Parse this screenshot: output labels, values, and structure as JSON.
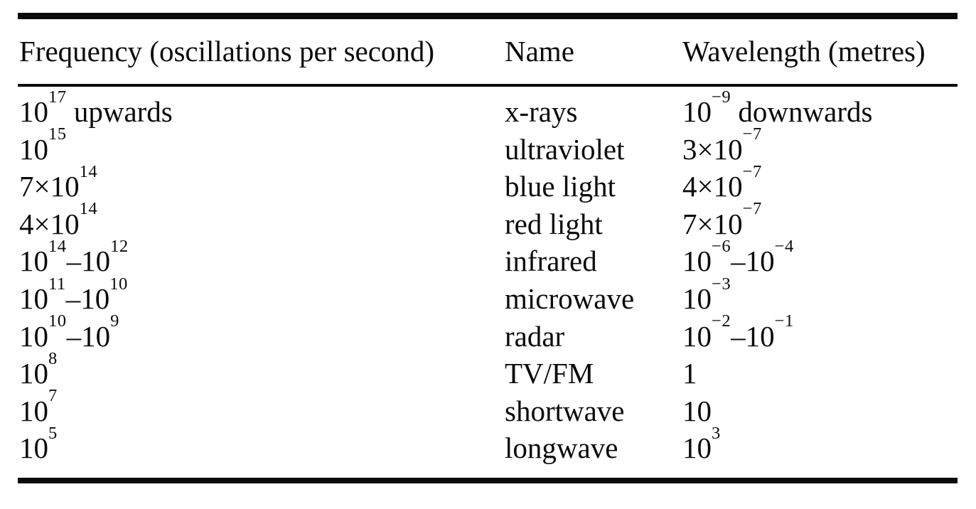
{
  "colors": {
    "text": "#0b0b0b",
    "background": "#ffffff",
    "rule": "#0b0b0b"
  },
  "table": {
    "columns": [
      {
        "key": "frequency",
        "label": "Frequency (oscillations per second)"
      },
      {
        "key": "name",
        "label": "Name"
      },
      {
        "key": "wavelength",
        "label": "Wavelength (metres)"
      }
    ],
    "rows": [
      {
        "frequency": "10^{17} upwards",
        "name": "x-rays",
        "wavelength": "10^{−9} downwards"
      },
      {
        "frequency": "10^{15}",
        "name": "ultraviolet",
        "wavelength": "3×10^{−7}"
      },
      {
        "frequency": "7×10^{14}",
        "name": "blue light",
        "wavelength": "4×10^{−7}"
      },
      {
        "frequency": "4×10^{14}",
        "name": "red light",
        "wavelength": "7×10^{−7}"
      },
      {
        "frequency": "10^{14}–10^{12}",
        "name": "infrared",
        "wavelength": "10^{−6}–10^{−4}"
      },
      {
        "frequency": "10^{11}–10^{10}",
        "name": "microwave",
        "wavelength": "10^{−3}"
      },
      {
        "frequency": "10^{10}–10^{9}",
        "name": "radar",
        "wavelength": "10^{−2}–10^{−1}"
      },
      {
        "frequency": "10^{8}",
        "name": "TV/FM",
        "wavelength": "1"
      },
      {
        "frequency": "10^{7}",
        "name": "shortwave",
        "wavelength": "10"
      },
      {
        "frequency": "10^{5}",
        "name": "longwave",
        "wavelength": "10^{3}"
      }
    ]
  }
}
